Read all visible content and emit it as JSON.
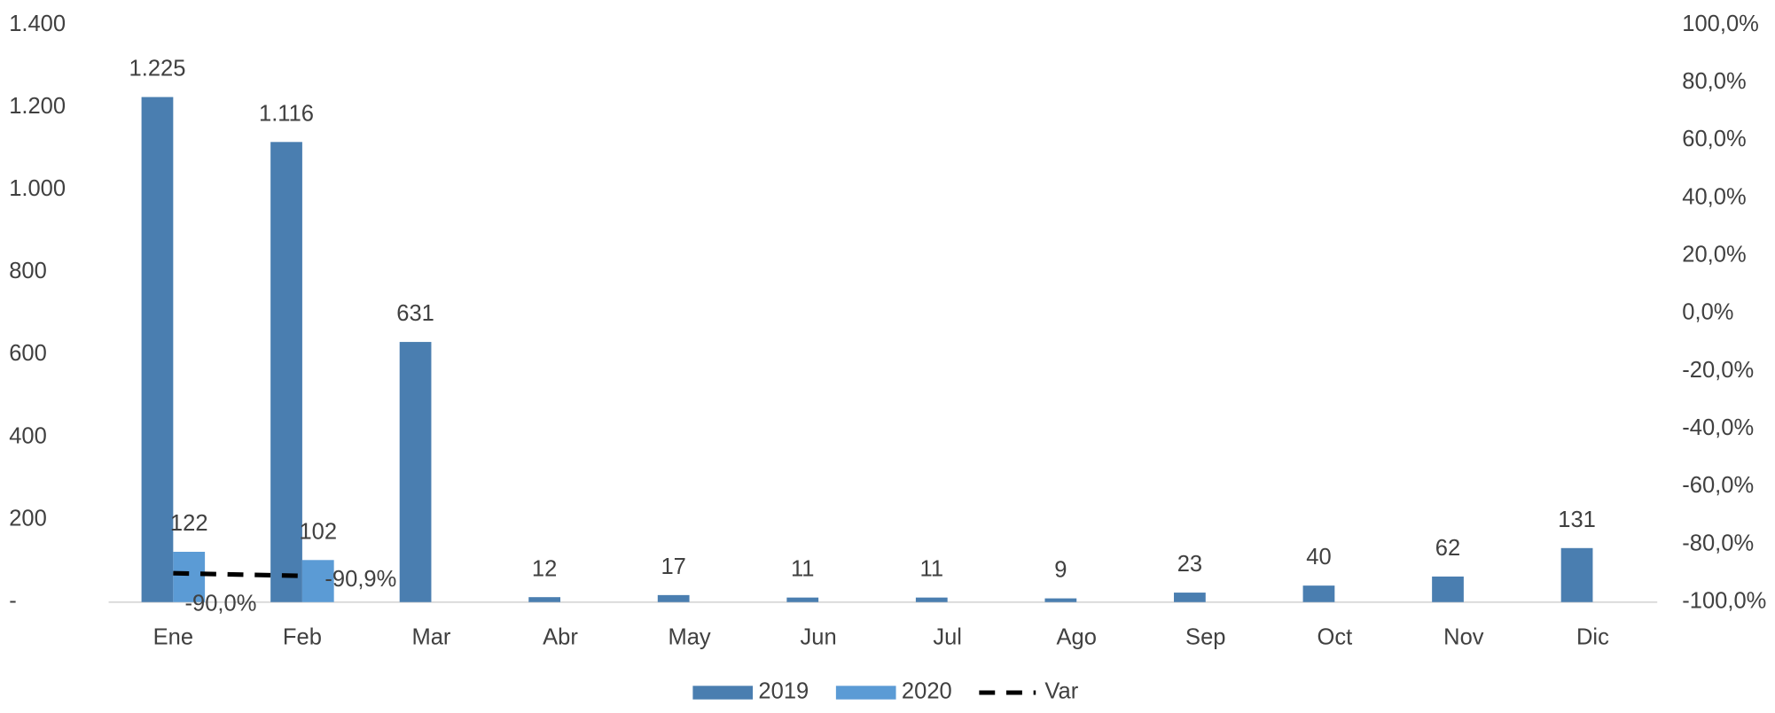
{
  "chart_data": {
    "type": "bar",
    "categories": [
      "Ene",
      "Feb",
      "Mar",
      "Abr",
      "May",
      "Jun",
      "Jul",
      "Ago",
      "Sep",
      "Oct",
      "Nov",
      "Dic"
    ],
    "series": [
      {
        "name": "2019",
        "color": "#4a7eb0",
        "values": [
          1225,
          1116,
          631,
          12,
          17,
          11,
          11,
          9,
          23,
          40,
          62,
          131
        ],
        "value_labels": [
          "1.225",
          "1.116",
          "631",
          "12",
          "17",
          "11",
          "11",
          "9",
          "23",
          "40",
          "62",
          "131"
        ]
      },
      {
        "name": "2020",
        "color": "#5b9bd5",
        "values": [
          122,
          102,
          null,
          null,
          null,
          null,
          null,
          null,
          null,
          null,
          null,
          null
        ],
        "value_labels": [
          "122",
          "102",
          null,
          null,
          null,
          null,
          null,
          null,
          null,
          null,
          null,
          null
        ]
      },
      {
        "name": "Var",
        "type": "line",
        "axis": "y2",
        "color": "#000000",
        "dashed": true,
        "values": [
          -90.0,
          -90.9,
          null,
          null,
          null,
          null,
          null,
          null,
          null,
          null,
          null,
          null
        ],
        "value_labels": [
          "-90,0%",
          "-90,9%",
          null,
          null,
          null,
          null,
          null,
          null,
          null,
          null,
          null,
          null
        ]
      }
    ],
    "ylim": [
      0,
      1400
    ],
    "yticks": [
      {
        "value": 0,
        "label": "-"
      },
      200,
      400,
      600,
      800,
      {
        "value": 1000,
        "label": "1.000"
      },
      {
        "value": 1200,
        "label": "1.200"
      },
      {
        "value": 1400,
        "label": "1.400"
      }
    ],
    "y2lim": [
      -100,
      100
    ],
    "y2ticks": [
      {
        "value": -100,
        "label": "-100,0%"
      },
      {
        "value": -80,
        "label": "-80,0%"
      },
      {
        "value": -60,
        "label": "-60,0%"
      },
      {
        "value": -40,
        "label": "-40,0%"
      },
      {
        "value": -20,
        "label": "-20,0%"
      },
      {
        "value": 0,
        "label": "0,0%"
      },
      {
        "value": 20,
        "label": "20,0%"
      },
      {
        "value": 40,
        "label": "40,0%"
      },
      {
        "value": 60,
        "label": "60,0%"
      },
      {
        "value": 80,
        "label": "80,0%"
      },
      {
        "value": 100,
        "label": "100,0%"
      }
    ],
    "grid": false,
    "legend": "bottom"
  }
}
